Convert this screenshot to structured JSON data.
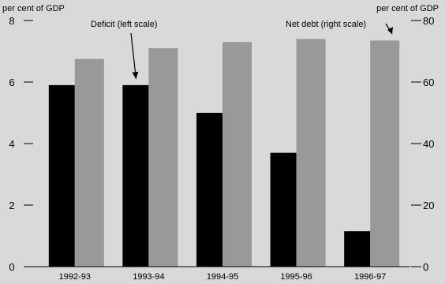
{
  "chart_data": {
    "type": "bar",
    "categories": [
      "1992-93",
      "1993-94",
      "1994-95",
      "1995-96",
      "1996-97"
    ],
    "series": [
      {
        "name": "Deficit (left scale)",
        "axis": "left",
        "values": [
          5.9,
          5.9,
          5.0,
          3.7,
          1.15
        ]
      },
      {
        "name": "Net debt (right scale)",
        "axis": "right",
        "values": [
          67.5,
          71,
          73,
          74,
          73.5
        ]
      }
    ],
    "y_left": {
      "label": "per cent of GDP",
      "ylim": [
        0,
        8
      ],
      "ticks": [
        0,
        2,
        4,
        6,
        8
      ]
    },
    "y_right": {
      "label": "per cent of GDP",
      "ylim": [
        0,
        80
      ],
      "ticks": [
        0,
        20,
        40,
        60,
        80
      ]
    },
    "annotations": [
      {
        "text": "Deficit (left scale)",
        "points_to": "Deficit (left scale)"
      },
      {
        "text": "Net debt (right scale)",
        "points_to": "Net debt (right scale)"
      }
    ],
    "grid": false,
    "legend": "none",
    "colors": {
      "background": "#d9d9d9",
      "deficit": "#000000",
      "net_debt": "#999999",
      "axis": "#000000"
    }
  }
}
